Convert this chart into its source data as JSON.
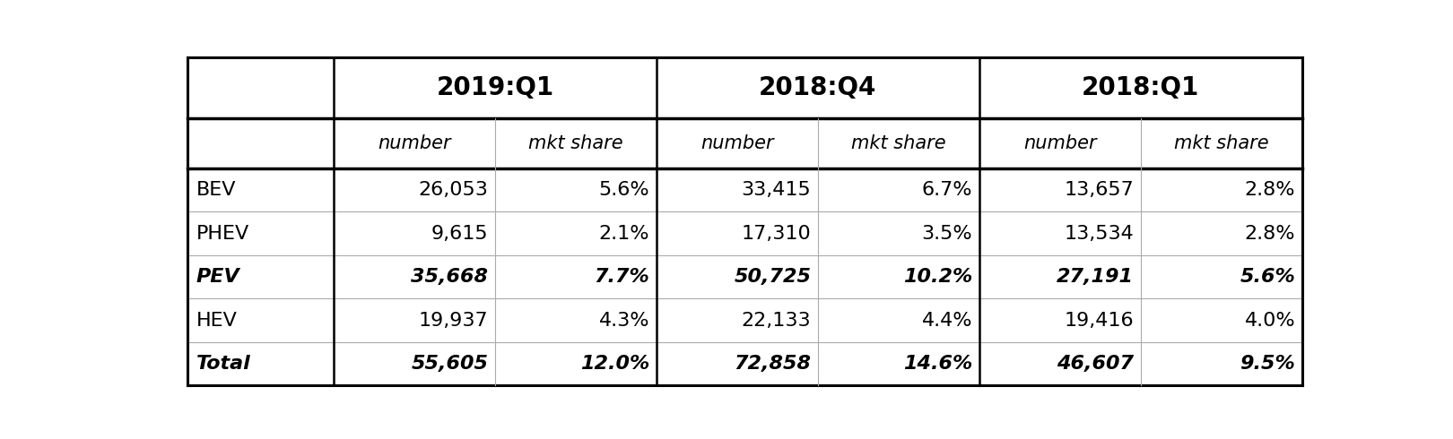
{
  "headers_row1": [
    "",
    "2019:Q1",
    "",
    "2018:Q4",
    "",
    "2018:Q1",
    ""
  ],
  "headers_row2": [
    "",
    "number",
    "mkt share",
    "number",
    "mkt share",
    "number",
    "mkt share"
  ],
  "rows": [
    {
      "label": "BEV",
      "italic": false,
      "values": [
        "26,053",
        "5.6%",
        "33,415",
        "6.7%",
        "13,657",
        "2.8%"
      ]
    },
    {
      "label": "PHEV",
      "italic": false,
      "values": [
        "9,615",
        "2.1%",
        "17,310",
        "3.5%",
        "13,534",
        "2.8%"
      ]
    },
    {
      "label": "PEV",
      "italic": true,
      "values": [
        "35,668",
        "7.7%",
        "50,725",
        "10.2%",
        "27,191",
        "5.6%"
      ]
    },
    {
      "label": "HEV",
      "italic": false,
      "values": [
        "19,937",
        "4.3%",
        "22,133",
        "4.4%",
        "19,416",
        "4.0%"
      ]
    },
    {
      "label": "Total",
      "italic": true,
      "values": [
        "55,605",
        "12.0%",
        "72,858",
        "14.6%",
        "46,607",
        "9.5%"
      ]
    }
  ],
  "background_color": "#ffffff",
  "text_color": "#000000",
  "font_size_header1": 20,
  "font_size_header2": 15,
  "font_size_data": 16
}
